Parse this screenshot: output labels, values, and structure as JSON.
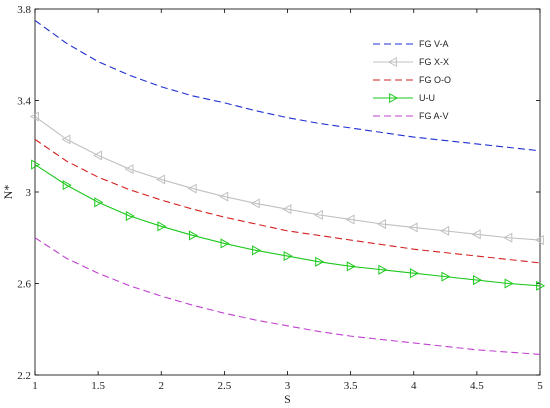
{
  "chart_data": {
    "type": "line",
    "xlabel": "S",
    "ylabel": "N*",
    "xlim": [
      1,
      5
    ],
    "ylim": [
      2.2,
      3.8
    ],
    "xticks": [
      "1",
      "1.5",
      "2",
      "2.5",
      "3",
      "3.5",
      "4",
      "4.5",
      "5"
    ],
    "yticks": [
      "2.2",
      "2.6",
      "3",
      "3.4",
      "3.8"
    ],
    "grid": false,
    "legend_position": "top-right",
    "series": [
      {
        "name": "FG V-A",
        "color": "#1f2fd0",
        "style": "dashed",
        "marker": "none",
        "x": [
          1,
          1.25,
          1.5,
          1.75,
          2,
          2.25,
          2.5,
          2.75,
          3,
          3.25,
          3.5,
          3.75,
          4,
          4.25,
          4.5,
          4.75,
          5
        ],
        "values": [
          3.75,
          3.65,
          3.57,
          3.51,
          3.46,
          3.42,
          3.39,
          3.355,
          3.325,
          3.3,
          3.28,
          3.26,
          3.24,
          3.225,
          3.21,
          3.195,
          3.18
        ]
      },
      {
        "name": "FG X-X",
        "color": "#c0c0c0",
        "style": "solid",
        "marker": "triangle-left",
        "x": [
          1,
          1.25,
          1.5,
          1.75,
          2,
          2.25,
          2.5,
          2.75,
          3,
          3.25,
          3.5,
          3.75,
          4,
          4.25,
          4.5,
          4.75,
          5
        ],
        "values": [
          3.33,
          3.23,
          3.16,
          3.1,
          3.055,
          3.015,
          2.98,
          2.95,
          2.925,
          2.9,
          2.88,
          2.86,
          2.845,
          2.83,
          2.815,
          2.8,
          2.79
        ]
      },
      {
        "name": "FG O-O",
        "color": "#d42020",
        "style": "dashed",
        "marker": "none",
        "x": [
          1,
          1.25,
          1.5,
          1.75,
          2,
          2.25,
          2.5,
          2.75,
          3,
          3.25,
          3.5,
          3.75,
          4,
          4.25,
          4.5,
          4.75,
          5
        ],
        "values": [
          3.23,
          3.135,
          3.065,
          3.01,
          2.965,
          2.925,
          2.89,
          2.86,
          2.83,
          2.81,
          2.79,
          2.77,
          2.75,
          2.735,
          2.72,
          2.705,
          2.69
        ]
      },
      {
        "name": "U-U",
        "color": "#1ec81e",
        "style": "solid",
        "marker": "triangle-right",
        "x": [
          1,
          1.25,
          1.5,
          1.75,
          2,
          2.25,
          2.5,
          2.75,
          3,
          3.25,
          3.5,
          3.75,
          4,
          4.25,
          4.5,
          4.75,
          5
        ],
        "values": [
          3.12,
          3.03,
          2.955,
          2.895,
          2.85,
          2.81,
          2.775,
          2.745,
          2.72,
          2.695,
          2.675,
          2.66,
          2.645,
          2.63,
          2.615,
          2.6,
          2.59
        ]
      },
      {
        "name": "FG A-V",
        "color": "#c040d0",
        "style": "dashed",
        "marker": "none",
        "x": [
          1,
          1.25,
          1.5,
          1.75,
          2,
          2.25,
          2.5,
          2.75,
          3,
          3.25,
          3.5,
          3.75,
          4,
          4.25,
          4.5,
          4.75,
          5
        ],
        "values": [
          2.8,
          2.71,
          2.645,
          2.59,
          2.545,
          2.505,
          2.47,
          2.44,
          2.415,
          2.39,
          2.37,
          2.355,
          2.34,
          2.325,
          2.31,
          2.3,
          2.29
        ]
      }
    ]
  }
}
